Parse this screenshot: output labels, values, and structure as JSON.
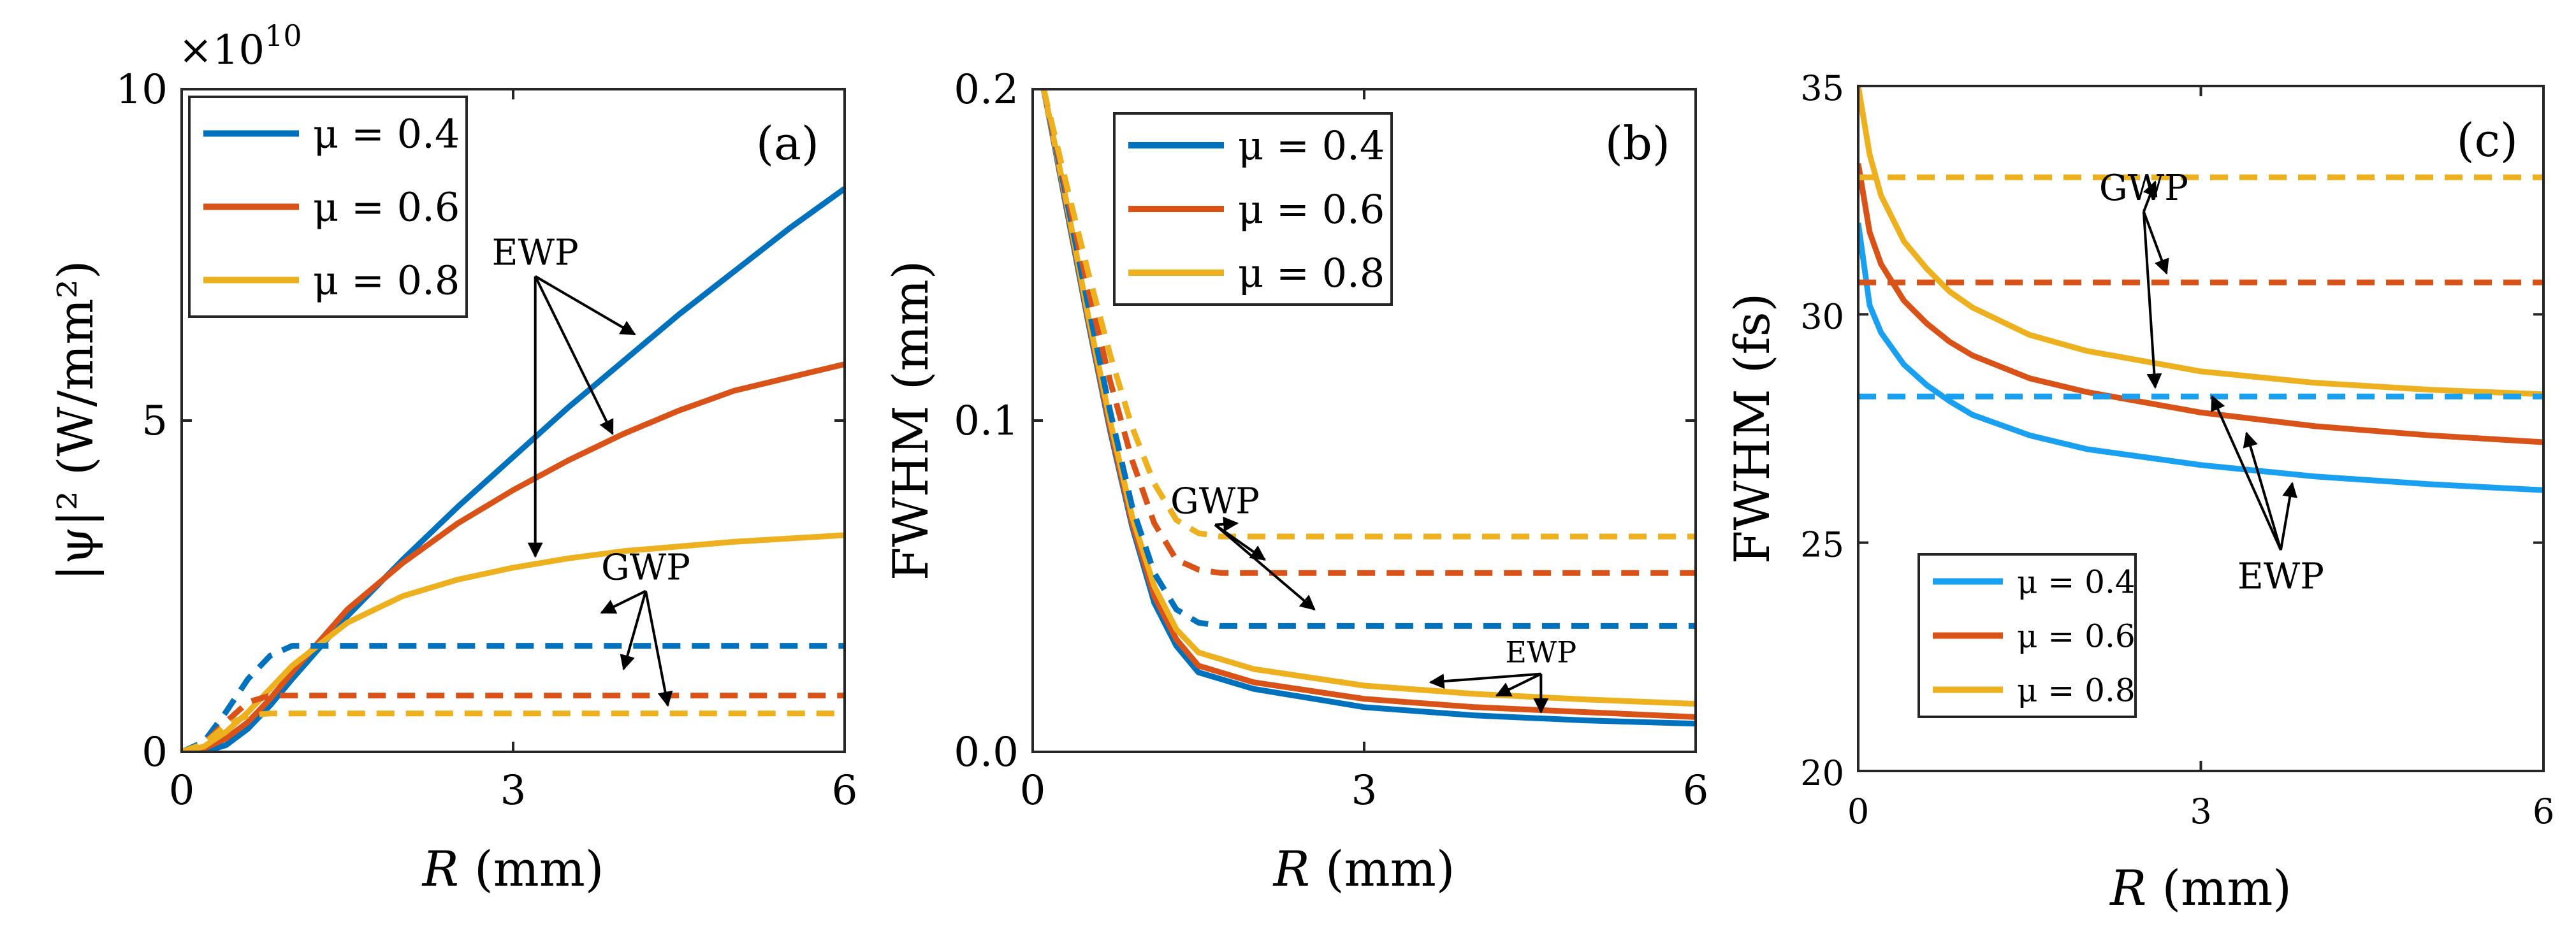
{
  "chart_data": [
    {
      "panel": "(a)",
      "type": "line",
      "xlabel_symbol": "R",
      "xlabel_unit": " (mm)",
      "ylabel": "|ψ|² (W/mm²)",
      "multiplier_text": "×10",
      "multiplier_exp": "10",
      "xlim": [
        0,
        6
      ],
      "ylim": [
        0,
        10
      ],
      "xticks": [
        0,
        3,
        6
      ],
      "xtick_labels": [
        "0",
        "3",
        "6"
      ],
      "yticks": [
        0,
        5,
        10
      ],
      "ytick_labels": [
        "0",
        "5",
        "10"
      ],
      "legend": [
        {
          "label": "μ = 0.4",
          "color": "#0072BD"
        },
        {
          "label": "μ = 0.6",
          "color": "#D95319"
        },
        {
          "label": "μ = 0.8",
          "color": "#EDB120"
        }
      ],
      "series": [
        {
          "name": "EWP μ = 0.4",
          "style": "solid",
          "color": "#0072BD",
          "points": [
            [
              0,
              0
            ],
            [
              0.2,
              0
            ],
            [
              0.4,
              0.1
            ],
            [
              0.6,
              0.35
            ],
            [
              0.8,
              0.7
            ],
            [
              1.0,
              1.1
            ],
            [
              1.5,
              2.05
            ],
            [
              2,
              2.9
            ],
            [
              2.5,
              3.7
            ],
            [
              3,
              4.45
            ],
            [
              3.5,
              5.2
            ],
            [
              4,
              5.9
            ],
            [
              4.5,
              6.6
            ],
            [
              5,
              7.25
            ],
            [
              5.5,
              7.9
            ],
            [
              6,
              8.5
            ]
          ]
        },
        {
          "name": "EWP μ = 0.6",
          "style": "solid",
          "color": "#D95319",
          "points": [
            [
              0,
              0
            ],
            [
              0.2,
              0.05
            ],
            [
              0.4,
              0.2
            ],
            [
              0.6,
              0.45
            ],
            [
              0.8,
              0.8
            ],
            [
              1.0,
              1.2
            ],
            [
              1.5,
              2.15
            ],
            [
              2,
              2.85
            ],
            [
              2.5,
              3.45
            ],
            [
              3,
              3.95
            ],
            [
              3.5,
              4.4
            ],
            [
              4,
              4.8
            ],
            [
              4.5,
              5.15
            ],
            [
              5,
              5.45
            ],
            [
              5.5,
              5.65
            ],
            [
              6,
              5.85
            ]
          ]
        },
        {
          "name": "EWP μ = 0.8",
          "style": "solid",
          "color": "#EDB120",
          "points": [
            [
              0,
              0
            ],
            [
              0.2,
              0.08
            ],
            [
              0.4,
              0.3
            ],
            [
              0.6,
              0.6
            ],
            [
              0.8,
              0.95
            ],
            [
              1.0,
              1.3
            ],
            [
              1.5,
              1.95
            ],
            [
              2,
              2.35
            ],
            [
              2.5,
              2.6
            ],
            [
              3,
              2.78
            ],
            [
              3.5,
              2.92
            ],
            [
              4,
              3.03
            ],
            [
              4.5,
              3.1
            ],
            [
              5,
              3.17
            ],
            [
              5.5,
              3.22
            ],
            [
              6,
              3.27
            ]
          ]
        },
        {
          "name": "GWP μ = 0.4",
          "style": "dashed",
          "color": "#0072BD",
          "points": [
            [
              0,
              0
            ],
            [
              0.2,
              0.15
            ],
            [
              0.4,
              0.6
            ],
            [
              0.6,
              1.1
            ],
            [
              0.8,
              1.45
            ],
            [
              1.0,
              1.6
            ],
            [
              1.2,
              1.6
            ],
            [
              6,
              1.6
            ]
          ]
        },
        {
          "name": "GWP μ = 0.6",
          "style": "dashed",
          "color": "#D95319",
          "points": [
            [
              0,
              0
            ],
            [
              0.2,
              0.12
            ],
            [
              0.4,
              0.45
            ],
            [
              0.6,
              0.75
            ],
            [
              0.8,
              0.85
            ],
            [
              1.0,
              0.85
            ],
            [
              6,
              0.85
            ]
          ]
        },
        {
          "name": "GWP μ = 0.8",
          "style": "dashed",
          "color": "#EDB120",
          "points": [
            [
              0,
              0
            ],
            [
              0.2,
              0.12
            ],
            [
              0.4,
              0.4
            ],
            [
              0.6,
              0.55
            ],
            [
              0.8,
              0.58
            ],
            [
              6,
              0.58
            ]
          ]
        }
      ],
      "annotations": [
        {
          "text": "EWP",
          "anchor": [
            3.2,
            7.35
          ],
          "targets": [
            [
              4.1,
              6.3
            ],
            [
              3.9,
              4.8
            ],
            [
              3.2,
              2.95
            ]
          ]
        },
        {
          "text": "GWP",
          "anchor": [
            4.2,
            2.6
          ],
          "targets": [
            [
              3.8,
              2.1
            ],
            [
              4.0,
              1.25
            ],
            [
              4.4,
              0.7
            ]
          ]
        }
      ]
    },
    {
      "panel": "(b)",
      "type": "line",
      "xlabel_symbol": "R",
      "xlabel_unit": " (mm)",
      "ylabel": "FWHM (mm)",
      "xlim": [
        0,
        6
      ],
      "ylim": [
        0,
        0.2
      ],
      "xticks": [
        0,
        3,
        6
      ],
      "xtick_labels": [
        "0",
        "3",
        "6"
      ],
      "yticks": [
        0,
        0.1,
        0.2
      ],
      "ytick_labels": [
        "0.0",
        "0.1",
        "0.2"
      ],
      "legend": [
        {
          "label": "μ = 0.4",
          "color": "#0072BD"
        },
        {
          "label": "μ = 0.6",
          "color": "#D95319"
        },
        {
          "label": "μ = 0.8",
          "color": "#EDB120"
        }
      ],
      "series": [
        {
          "name": "EWP μ = 0.4",
          "style": "solid",
          "color": "#0072BD",
          "points": [
            [
              0.1,
              0.2
            ],
            [
              0.3,
              0.165
            ],
            [
              0.5,
              0.13
            ],
            [
              0.7,
              0.097
            ],
            [
              0.9,
              0.068
            ],
            [
              1.1,
              0.045
            ],
            [
              1.3,
              0.032
            ],
            [
              1.5,
              0.024
            ],
            [
              2,
              0.019
            ],
            [
              3,
              0.0135
            ],
            [
              4,
              0.011
            ],
            [
              5,
              0.0095
            ],
            [
              6,
              0.0085
            ]
          ]
        },
        {
          "name": "EWP μ = 0.6",
          "style": "solid",
          "color": "#D95319",
          "points": [
            [
              0.1,
              0.2
            ],
            [
              0.3,
              0.166
            ],
            [
              0.5,
              0.131
            ],
            [
              0.7,
              0.098
            ],
            [
              0.9,
              0.069
            ],
            [
              1.1,
              0.047
            ],
            [
              1.3,
              0.034
            ],
            [
              1.5,
              0.026
            ],
            [
              2,
              0.021
            ],
            [
              3,
              0.016
            ],
            [
              4,
              0.0135
            ],
            [
              5,
              0.012
            ],
            [
              6,
              0.0105
            ]
          ]
        },
        {
          "name": "EWP μ = 0.8",
          "style": "solid",
          "color": "#EDB120",
          "points": [
            [
              0.1,
              0.2
            ],
            [
              0.3,
              0.167
            ],
            [
              0.5,
              0.132
            ],
            [
              0.7,
              0.1
            ],
            [
              0.9,
              0.071
            ],
            [
              1.1,
              0.05
            ],
            [
              1.3,
              0.037
            ],
            [
              1.5,
              0.03
            ],
            [
              2,
              0.025
            ],
            [
              3,
              0.02
            ],
            [
              4,
              0.0175
            ],
            [
              5,
              0.0158
            ],
            [
              6,
              0.0145
            ]
          ]
        },
        {
          "name": "GWP μ = 0.4",
          "style": "dashed",
          "color": "#0072BD",
          "points": [
            [
              0.1,
              0.2
            ],
            [
              0.3,
              0.168
            ],
            [
              0.5,
              0.135
            ],
            [
              0.7,
              0.103
            ],
            [
              0.9,
              0.074
            ],
            [
              1.1,
              0.054
            ],
            [
              1.3,
              0.043
            ],
            [
              1.5,
              0.039
            ],
            [
              1.7,
              0.038
            ],
            [
              6,
              0.038
            ]
          ]
        },
        {
          "name": "GWP μ = 0.6",
          "style": "dashed",
          "color": "#D95319",
          "points": [
            [
              0.1,
              0.2
            ],
            [
              0.3,
              0.17
            ],
            [
              0.5,
              0.14
            ],
            [
              0.7,
              0.112
            ],
            [
              0.9,
              0.088
            ],
            [
              1.1,
              0.069
            ],
            [
              1.3,
              0.058
            ],
            [
              1.5,
              0.055
            ],
            [
              1.7,
              0.054
            ],
            [
              6,
              0.054
            ]
          ]
        },
        {
          "name": "GWP μ = 0.8",
          "style": "dashed",
          "color": "#EDB120",
          "points": [
            [
              0.1,
              0.2
            ],
            [
              0.3,
              0.172
            ],
            [
              0.5,
              0.145
            ],
            [
              0.7,
              0.12
            ],
            [
              0.9,
              0.098
            ],
            [
              1.1,
              0.081
            ],
            [
              1.3,
              0.07
            ],
            [
              1.5,
              0.066
            ],
            [
              1.7,
              0.065
            ],
            [
              6,
              0.065
            ]
          ]
        }
      ],
      "annotations": [
        {
          "text": "GWP",
          "anchor": [
            1.65,
            0.072
          ],
          "targets": [
            [
              1.85,
              0.069
            ],
            [
              2.1,
              0.058
            ],
            [
              2.55,
              0.043
            ]
          ]
        },
        {
          "text": "EWP",
          "anchor": [
            4.6,
            0.027
          ],
          "targets": [
            [
              3.6,
              0.021
            ],
            [
              4.2,
              0.017
            ],
            [
              4.6,
              0.012
            ]
          ]
        }
      ]
    },
    {
      "panel": "(c)",
      "type": "line",
      "xlabel_symbol": "R",
      "xlabel_unit": " (mm)",
      "ylabel": "FWHM (fs)",
      "xlim": [
        0,
        6
      ],
      "ylim": [
        20,
        35
      ],
      "xticks": [
        0,
        3,
        6
      ],
      "xtick_labels": [
        "0",
        "3",
        "6"
      ],
      "yticks": [
        20,
        25,
        30,
        35
      ],
      "ytick_labels": [
        "20",
        "25",
        "30",
        "35"
      ],
      "legend": [
        {
          "label": "μ = 0.4",
          "color": "#1AA0F0"
        },
        {
          "label": "μ = 0.6",
          "color": "#D95319"
        },
        {
          "label": "μ = 0.8",
          "color": "#EDB120"
        }
      ],
      "series": [
        {
          "name": "EWP μ = 0.4",
          "style": "solid",
          "color": "#1AA0F0",
          "points": [
            [
              0,
              32
            ],
            [
              0.1,
              30.2
            ],
            [
              0.2,
              29.6
            ],
            [
              0.4,
              28.9
            ],
            [
              0.6,
              28.45
            ],
            [
              0.8,
              28.1
            ],
            [
              1,
              27.8
            ],
            [
              1.5,
              27.35
            ],
            [
              2,
              27.05
            ],
            [
              3,
              26.7
            ],
            [
              4,
              26.45
            ],
            [
              5,
              26.28
            ],
            [
              6,
              26.15
            ]
          ]
        },
        {
          "name": "EWP μ = 0.6",
          "style": "solid",
          "color": "#D95319",
          "points": [
            [
              0,
              33.3
            ],
            [
              0.1,
              31.8
            ],
            [
              0.2,
              31.1
            ],
            [
              0.4,
              30.3
            ],
            [
              0.6,
              29.8
            ],
            [
              0.8,
              29.4
            ],
            [
              1,
              29.1
            ],
            [
              1.5,
              28.6
            ],
            [
              2,
              28.3
            ],
            [
              3,
              27.85
            ],
            [
              4,
              27.55
            ],
            [
              5,
              27.35
            ],
            [
              6,
              27.2
            ]
          ]
        },
        {
          "name": "EWP μ = 0.8",
          "style": "solid",
          "color": "#EDB120",
          "points": [
            [
              0,
              35
            ],
            [
              0.1,
              33.5
            ],
            [
              0.2,
              32.6
            ],
            [
              0.4,
              31.6
            ],
            [
              0.6,
              31
            ],
            [
              0.8,
              30.5
            ],
            [
              1,
              30.15
            ],
            [
              1.5,
              29.55
            ],
            [
              2,
              29.2
            ],
            [
              3,
              28.75
            ],
            [
              4,
              28.5
            ],
            [
              5,
              28.35
            ],
            [
              6,
              28.25
            ]
          ]
        },
        {
          "name": "GWP μ = 0.4",
          "style": "dashed",
          "color": "#1AA0F0",
          "points": [
            [
              0,
              28.2
            ],
            [
              6,
              28.2
            ]
          ]
        },
        {
          "name": "GWP μ = 0.6",
          "style": "dashed",
          "color": "#D95319",
          "points": [
            [
              0,
              30.7
            ],
            [
              6,
              30.7
            ]
          ]
        },
        {
          "name": "GWP μ = 0.8",
          "style": "dashed",
          "color": "#EDB120",
          "points": [
            [
              0,
              33
            ],
            [
              6,
              33
            ]
          ]
        }
      ],
      "annotations": [
        {
          "text": "GWP",
          "anchor": [
            2.5,
            32.5
          ],
          "targets": [
            [
              2.6,
              32.9
            ],
            [
              2.7,
              30.9
            ],
            [
              2.6,
              28.4
            ]
          ]
        },
        {
          "text": "EWP",
          "anchor": [
            3.7,
            24
          ],
          "targets": [
            [
              3.1,
              28.2
            ],
            [
              3.4,
              27.4
            ],
            [
              3.8,
              26.3
            ]
          ]
        }
      ]
    }
  ]
}
